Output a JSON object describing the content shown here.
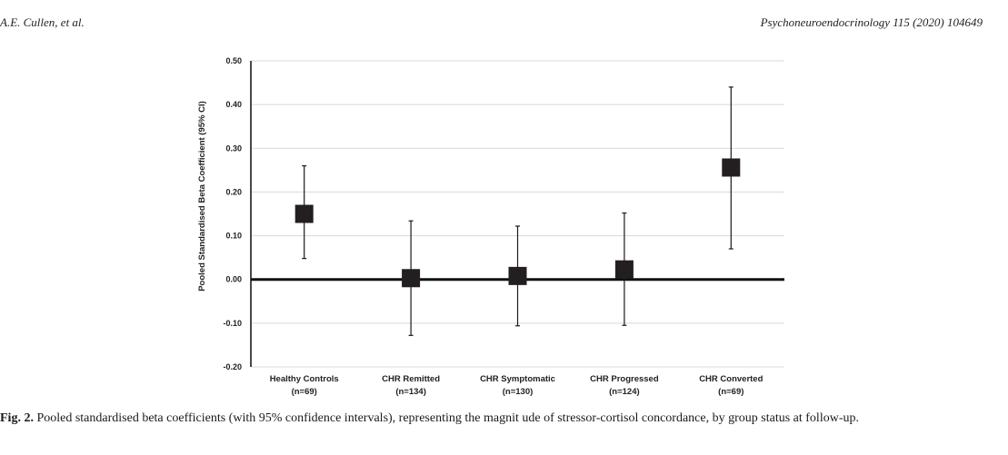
{
  "header": {
    "authors": "A.E. Cullen, et al.",
    "journal": "Psychoneuroendocrinology 115 (2020) 104649"
  },
  "caption": {
    "label": "Fig. 2.",
    "text": "Pooled standardised beta coefficients (with 95% confidence intervals), representing the magnit ude of stressor-cortisol concordance, by group status at follow-up."
  },
  "chart_data": {
    "type": "scatter",
    "title": "",
    "ylabel": "Pooled Standardised Beta Coefficient (95% CI)",
    "xlabel": "",
    "ylim": [
      -0.2,
      0.5
    ],
    "yticks": [
      "0.50",
      "0.40",
      "0.30",
      "0.20",
      "0.10",
      "0.00",
      "-0.10",
      "-0.20"
    ],
    "ytick_values": [
      0.5,
      0.4,
      0.3,
      0.2,
      0.1,
      0.0,
      -0.1,
      -0.2
    ],
    "grid": true,
    "categories": [
      {
        "name": "Healthy Controls",
        "n": "(n=69)"
      },
      {
        "name": "CHR Remitted",
        "n": "(n=134)"
      },
      {
        "name": "CHR Symptomatic",
        "n": "(n=130)"
      },
      {
        "name": "CHR Progressed",
        "n": "(n=124)"
      },
      {
        "name": "CHR Converted",
        "n": "(n=69)"
      }
    ],
    "estimates": [
      0.15,
      0.003,
      0.008,
      0.023,
      0.256
    ],
    "ci_lower": [
      0.048,
      -0.128,
      -0.106,
      -0.105,
      0.07
    ],
    "ci_upper": [
      0.26,
      0.134,
      0.122,
      0.152,
      0.44
    ],
    "marker_color": "#231f20"
  }
}
